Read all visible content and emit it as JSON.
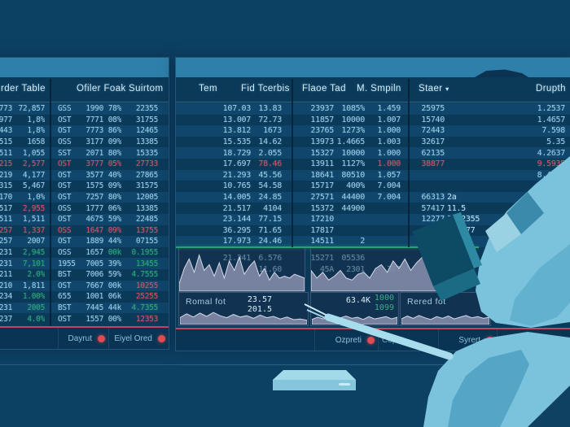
{
  "colors": {
    "bg": "#0d4164",
    "panel": "#0b3a59",
    "panel_alt": "#10466b",
    "header_band": "#2e80ab",
    "accent_red": "#c9485f",
    "accent_green": "#2fa478",
    "status_dot_red": "#e04b52",
    "chart_fill": "#848dab",
    "chart_line": "#d4d9e5",
    "person_shirt": "#7bc3dc"
  },
  "left_screen": {
    "headers": [
      "rder Table",
      "Ofiler Foak",
      "Suirtom"
    ],
    "rows": [
      [
        "7773",
        "72,857",
        "GSS",
        "1990",
        "78%",
        "22355"
      ],
      [
        "-977",
        "1,8%",
        "OST",
        "7771",
        "08%",
        "31755"
      ],
      [
        "1443",
        "1,8%",
        "OST",
        "7773",
        "86%",
        "12465"
      ],
      [
        "1515",
        "1658",
        "OSS",
        "3177",
        "09%",
        "13385"
      ],
      [
        "2511",
        "1,055",
        "SST",
        "2071",
        "80%",
        "15335"
      ],
      [
        {
          "t": "9215",
          "c": "r"
        },
        {
          "t": "2,577",
          "c": "r"
        },
        {
          "t": "OST",
          "c": "r"
        },
        {
          "t": "3777",
          "c": "r"
        },
        {
          "t": "05%",
          "c": "r"
        },
        {
          "t": "27733",
          "c": "r"
        }
      ],
      [
        "9219",
        "4,177",
        "OST",
        "3577",
        "40%",
        "27865"
      ],
      [
        "9315",
        "5,467",
        "OST",
        "1575",
        "09%",
        "31575"
      ],
      [
        "1170",
        "1,0%",
        "OST",
        "7257",
        "80%",
        "12005"
      ],
      [
        "1517",
        {
          "t": "2,955",
          "c": "r"
        },
        "OSS",
        "1777",
        "06%",
        "13385"
      ],
      [
        "1511",
        "1,511",
        "OST",
        "4675",
        "59%",
        "22485"
      ],
      [
        {
          "t": "1257",
          "c": "r"
        },
        {
          "t": "1,337",
          "c": "r"
        },
        {
          "t": "OSS",
          "c": "r"
        },
        {
          "t": "1647",
          "c": "r"
        },
        {
          "t": "09%",
          "c": "r"
        },
        {
          "t": "13755",
          "c": "r"
        }
      ],
      [
        "1257",
        "2007",
        "OST",
        "1889",
        "44%",
        "07155"
      ],
      [
        "-231",
        {
          "t": "2,945",
          "c": "g"
        },
        "OSS",
        "1657",
        {
          "t": "00k",
          "c": "g"
        },
        {
          "t": "0.1955",
          "c": "g"
        }
      ],
      [
        "-231",
        {
          "t": "7,101",
          "c": "g"
        },
        "1955",
        "7005",
        "39%",
        {
          "t": "13455",
          "c": "g"
        }
      ],
      [
        "-211",
        {
          "t": "2.0%",
          "c": "g"
        },
        "BST",
        "7006",
        "59%",
        {
          "t": "4.7555",
          "c": "g"
        }
      ],
      [
        "-210",
        "1,811",
        "OST",
        "7667",
        "00k",
        {
          "t": "10255",
          "c": "r"
        }
      ],
      [
        "-234",
        {
          "t": "1.00%",
          "c": "g"
        },
        "655",
        "1001",
        "06k",
        {
          "t": "25255",
          "c": "r"
        }
      ],
      [
        "-231",
        {
          "t": "2005",
          "c": "g"
        },
        "BST",
        "7445",
        "44k",
        {
          "t": "4.7355",
          "c": "g"
        }
      ],
      [
        "-237",
        {
          "t": "4.0%",
          "c": "g"
        },
        "OST",
        "1557",
        "00%",
        {
          "t": "12353",
          "c": "r"
        }
      ]
    ],
    "footer": [
      {
        "label": "Dayrut"
      },
      {
        "label": "Eiyel Ored"
      }
    ]
  },
  "center_screen": {
    "headers": [
      "Tem",
      "Fid Tcerbis",
      "Flaoe Tad",
      "M. Smpiln",
      "Staer",
      "Drupth"
    ],
    "sort_icon": "▾",
    "rows": [
      [
        "107.03",
        "13.83",
        "23937",
        "1085%",
        "1.459",
        "25975",
        "",
        "1.2537"
      ],
      [
        "13.007",
        "72.73",
        "11857",
        "10000",
        "1.007",
        "15740",
        "",
        "1.4657"
      ],
      [
        "13.812",
        "1673",
        "23765",
        "1273%",
        "1.000",
        "72443",
        "",
        "7.598"
      ],
      [
        "15.535",
        "14.62",
        "13973",
        "1.4665",
        "1.003",
        "32617",
        "",
        "5.35"
      ],
      [
        "18.729",
        "2.055",
        "15327",
        "10000",
        "1.000",
        "62135",
        "",
        "4.2637"
      ],
      [
        "17.697",
        {
          "t": "78.46",
          "c": "r"
        },
        "13911",
        "1127%",
        {
          "t": "1.000",
          "c": "r"
        },
        {
          "t": "38877",
          "c": "r"
        },
        "",
        {
          "t": "9.5935",
          "c": "r"
        }
      ],
      [
        "21.293",
        "45.56",
        "18641",
        "80510",
        "1.057",
        "",
        "",
        "8.4155"
      ],
      [
        "10.765",
        "54.58",
        "15717",
        "400%",
        "7.004",
        "",
        "",
        "00"
      ],
      [
        "14.005",
        "24.85",
        "27571",
        "44400",
        "7.004",
        "66313",
        "2a",
        ""
      ],
      [
        "21.517",
        "4104",
        "15372",
        "44900",
        "",
        "57417",
        "11.5",
        ""
      ],
      [
        "23.144",
        "77.15",
        "17210",
        "",
        "",
        "12277",
        "1.02355",
        ""
      ],
      [
        "36.295",
        "71.65",
        "17817",
        "",
        "",
        "",
        "1.5277",
        ""
      ],
      [
        "17.973",
        "24.46",
        "14511",
        "2",
        "",
        "",
        "",
        ""
      ],
      [
        "21.341",
        "6.576",
        "15271",
        "05536",
        "",
        "",
        "",
        ""
      ],
      [
        "",
        "11.60",
        "45A",
        "2301",
        "387",
        "1234",
        "",
        ""
      ]
    ],
    "panels": [
      {
        "label": "Romal fot",
        "value": "23.57",
        "value2": "201.5"
      },
      {
        "label": "",
        "value": "63.4K",
        "green1": "1000",
        "green2": "1099"
      },
      {
        "label": "Rered fot",
        "value": "",
        "value2": ""
      }
    ],
    "footer": [
      {
        "label": "Ozpreti"
      },
      {
        "label": "Copat"
      },
      {
        "label": "Syrert"
      }
    ],
    "sparklines": {
      "main_a": [
        0.15,
        0.55,
        0.8,
        0.45,
        0.9,
        0.5,
        0.65,
        0.35,
        0.7,
        0.3,
        0.75,
        0.5,
        0.85,
        0.4,
        0.6,
        0.75,
        0.35,
        0.55,
        0.25,
        0.45,
        0.3,
        0.35,
        0.3,
        0.4,
        0.35,
        0.3
      ],
      "main_b": [
        0.5,
        0.3,
        0.45,
        0.25,
        0.35,
        0.5,
        0.3,
        0.25,
        0.4,
        0.45,
        0.3,
        0.55,
        0.65,
        0.45,
        0.75,
        0.55,
        0.8,
        0.5,
        0.7,
        0.85,
        0.6,
        0.75,
        0.5,
        0.65,
        0.8,
        0.55
      ],
      "p1": [
        0.4,
        0.7,
        0.45,
        0.75,
        0.5,
        0.8,
        0.55,
        0.4,
        0.65,
        0.45,
        0.55,
        0.35,
        0.6,
        0.4,
        0.5,
        0.3,
        0.45,
        0.25,
        0.3,
        0.2
      ],
      "p2": [
        0.3,
        0.5,
        0.35,
        0.55,
        0.3,
        0.45,
        0.6,
        0.4,
        0.5,
        0.3,
        0.55,
        0.35,
        0.45,
        0.55,
        0.35,
        0.5
      ],
      "p3": [
        0.35,
        0.6,
        0.4,
        0.65,
        0.45,
        0.3,
        0.55,
        0.4,
        0.6,
        0.35,
        0.5,
        0.65,
        0.45,
        0.55,
        0.4,
        0.5
      ]
    }
  }
}
